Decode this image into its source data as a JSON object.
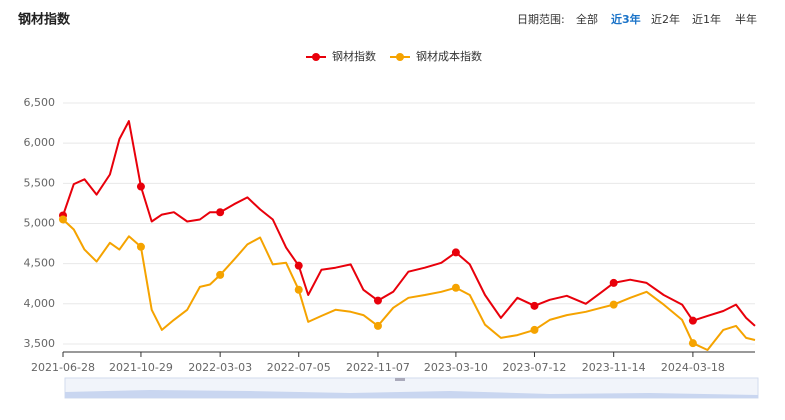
{
  "controls": {
    "label": "日期范围:",
    "options": [
      "全部",
      "近3年",
      "近2年",
      "近1年",
      "半年"
    ],
    "selected": "近3年"
  },
  "chart_data": {
    "type": "line",
    "title": "钢材指数",
    "x": [
      "2021-06-28",
      "2021-07-15",
      "2021-08-01",
      "2021-08-20",
      "2021-09-10",
      "2021-09-25",
      "2021-10-10",
      "2021-10-29",
      "2021-11-15",
      "2021-12-01",
      "2021-12-20",
      "2022-01-10",
      "2022-01-30",
      "2022-02-15",
      "2022-03-03",
      "2022-03-25",
      "2022-04-15",
      "2022-05-05",
      "2022-05-25",
      "2022-06-15",
      "2022-07-05",
      "2022-07-20",
      "2022-08-10",
      "2022-09-01",
      "2022-09-25",
      "2022-10-15",
      "2022-11-07",
      "2022-12-01",
      "2022-12-25",
      "2023-01-20",
      "2023-02-15",
      "2023-03-10",
      "2023-04-01",
      "2023-04-25",
      "2023-05-20",
      "2023-06-15",
      "2023-07-12",
      "2023-08-05",
      "2023-09-01",
      "2023-10-01",
      "2023-10-25",
      "2023-11-14",
      "2023-12-10",
      "2024-01-05",
      "2024-02-01",
      "2024-03-01",
      "2024-03-18",
      "2024-04-10",
      "2024-05-05",
      "2024-05-25",
      "2024-06-10",
      "2024-06-24"
    ],
    "series": [
      {
        "name": "钢材指数",
        "color": "#e8000b",
        "values": [
          5100,
          5490,
          5550,
          5360,
          5610,
          6050,
          6275,
          5460,
          5025,
          5110,
          5140,
          5025,
          5050,
          5140,
          5140,
          5240,
          5325,
          5175,
          5050,
          4700,
          4475,
          4110,
          4425,
          4450,
          4490,
          4175,
          4040,
          4150,
          4400,
          4450,
          4510,
          4640,
          4490,
          4110,
          3825,
          4075,
          3975,
          4050,
          4100,
          4000,
          4140,
          4260,
          4300,
          4260,
          4110,
          3990,
          3790,
          3850,
          3910,
          3990,
          3825,
          3725
        ]
      },
      {
        "name": "钢材成本指数",
        "color": "#f5a300",
        "values": [
          5050,
          4925,
          4675,
          4525,
          4760,
          4675,
          4840,
          4710,
          3925,
          3675,
          3800,
          3925,
          4210,
          4240,
          4360,
          4550,
          4740,
          4825,
          4490,
          4510,
          4175,
          3775,
          3850,
          3925,
          3900,
          3860,
          3725,
          3950,
          4075,
          4110,
          4150,
          4200,
          4110,
          3740,
          3575,
          3610,
          3675,
          3800,
          3860,
          3900,
          3950,
          3990,
          4075,
          4150,
          3990,
          3800,
          3510,
          3425,
          3675,
          3725,
          3575,
          3550
        ]
      }
    ],
    "xlim": [
      "2021-06-28",
      "2024-06-24"
    ],
    "xticks": [
      "2021-06-28",
      "2021-10-29",
      "2022-03-03",
      "2022-07-05",
      "2022-11-07",
      "2023-03-10",
      "2023-07-12",
      "2023-11-14",
      "2024-03-18"
    ],
    "ylim": [
      3400,
      6500
    ],
    "yticks": [
      {
        "value": 3500,
        "label": "3,500"
      },
      {
        "value": 4000,
        "label": "4,000"
      },
      {
        "value": 4500,
        "label": "4,500"
      },
      {
        "value": 5000,
        "label": "5,000"
      },
      {
        "value": 5500,
        "label": "5,500"
      },
      {
        "value": 6000,
        "label": "6,000"
      },
      {
        "value": 6500,
        "label": "6,500"
      }
    ],
    "grid": true,
    "legend": "top"
  }
}
